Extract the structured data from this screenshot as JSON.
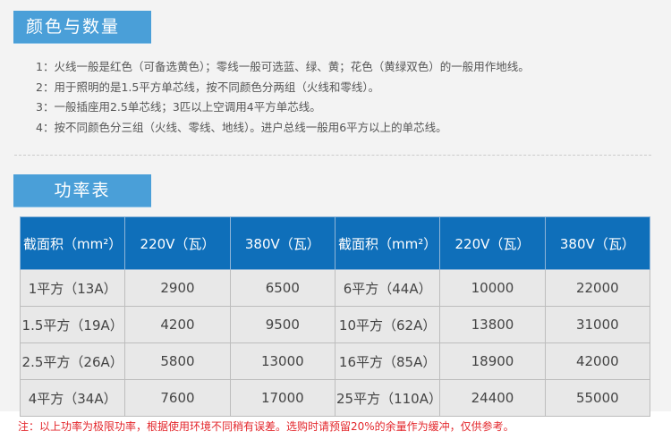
{
  "section1": {
    "title": "颜色与数量",
    "lines": [
      "1：火线一般是红色（可备选黄色）；零线一般可选蓝、绿、黄；花色（黄绿双色）的一般用作地线。",
      "2：用于照明的是1.5平方单芯线，按不同颜色分两组（火线和零线）。",
      "3：一般插座用2.5单芯线；3匹以上空调用4平方单芯线。",
      "4：按不同颜色分三组（火线、零线、地线）。进户总线一般用6平方以上的单芯线。"
    ]
  },
  "section2": {
    "title": "功率表",
    "headers": [
      "截面积（mm²）",
      "220V（瓦）",
      "380V（瓦）",
      "截面积（mm²）",
      "220V（瓦）",
      "380V（瓦）"
    ],
    "rows": [
      [
        "1平方（13A）",
        "2900",
        "6500",
        "6平方（44A）",
        "10000",
        "22000"
      ],
      [
        "1.5平方（19A）",
        "4200",
        "9500",
        "10平方（62A）",
        "13800",
        "31000"
      ],
      [
        "2.5平方（26A）",
        "5800",
        "13000",
        "16平方（85A）",
        "18900",
        "42000"
      ],
      [
        "4平方（34A）",
        "7600",
        "17000",
        "25平方（110A）",
        "24400",
        "55000"
      ]
    ]
  },
  "note": "注：以上功率为极限功率，根据使用环境不同稍有误差。选购时请预留20%的余量作为缓冲，仅供参考。",
  "colors": {
    "title_bg": "#4a9fd8",
    "header_bg": "#0f6fba",
    "note": "#e3262b"
  }
}
